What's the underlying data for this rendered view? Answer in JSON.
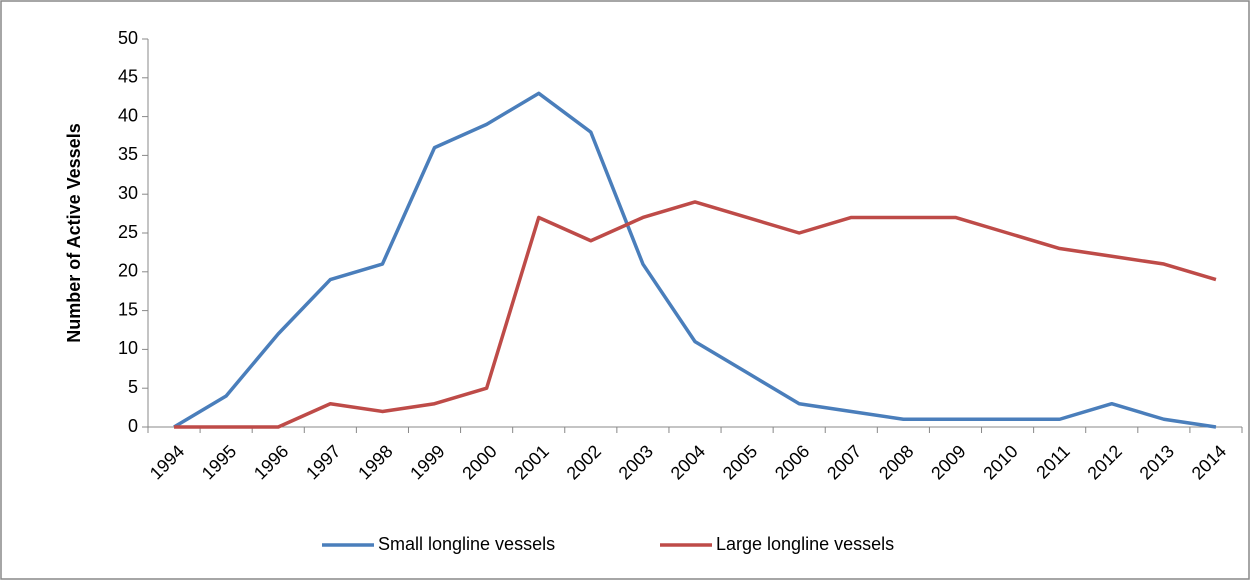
{
  "chart_data": {
    "type": "line",
    "y_label": "Number of Active  Vessels",
    "categories": [
      "1994",
      "1995",
      "1996",
      "1997",
      "1998",
      "1999",
      "2000",
      "2001",
      "2002",
      "2003",
      "2004",
      "2005",
      "2006",
      "2007",
      "2008",
      "2009",
      "2010",
      "2011",
      "2012",
      "2013",
      "2014"
    ],
    "series": [
      {
        "name": "Small longline vessels",
        "color": "#4a7ebb",
        "values": [
          0,
          4,
          12,
          19,
          21,
          36,
          39,
          43,
          38,
          21,
          11,
          7,
          3,
          2,
          1,
          1,
          1,
          1,
          3,
          1,
          0
        ]
      },
      {
        "name": "Large longline vessels",
        "color": "#be4b48",
        "values": [
          0,
          0,
          0,
          3,
          2,
          3,
          5,
          27,
          24,
          27,
          29,
          27,
          25,
          27,
          27,
          27,
          25,
          23,
          22,
          21,
          19
        ]
      }
    ],
    "ylim": [
      0,
      50
    ],
    "yticks": [
      0,
      5,
      10,
      15,
      20,
      25,
      30,
      35,
      40,
      45,
      50
    ],
    "grid": false,
    "legend": "bottom"
  }
}
